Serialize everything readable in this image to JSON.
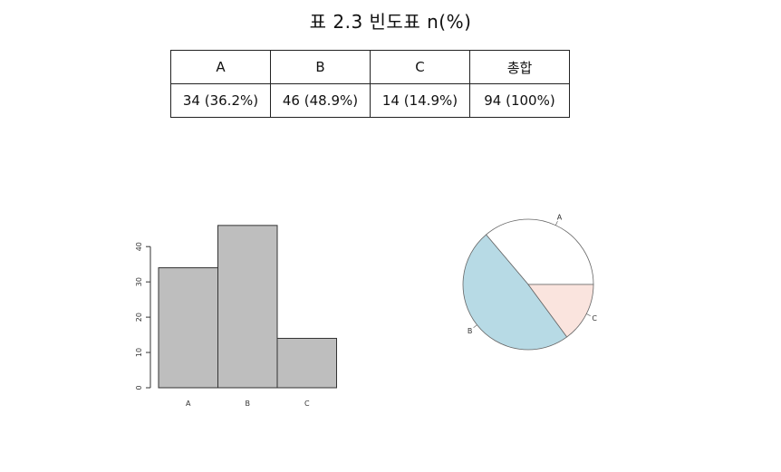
{
  "caption": "표 2.3 빈도표 n(%)",
  "table": {
    "headers": [
      "A",
      "B",
      "C",
      "총합"
    ],
    "cells": [
      "34 (36.2%)",
      "46 (48.9%)",
      "14 (14.9%)",
      "94 (100%)"
    ]
  },
  "chart_data": [
    {
      "type": "bar",
      "categories": [
        "A",
        "B",
        "C"
      ],
      "values": [
        34,
        46,
        14
      ],
      "ylim": [
        0,
        46
      ],
      "yticks": [
        "0",
        "10",
        "20",
        "30",
        "40"
      ],
      "bar_color": "#bebebe",
      "grid": false
    },
    {
      "type": "pie",
      "categories": [
        "A",
        "B",
        "C"
      ],
      "values": [
        34,
        46,
        14
      ],
      "colors": [
        "#ffffff",
        "#b7dae5",
        "#fae4de"
      ]
    }
  ]
}
